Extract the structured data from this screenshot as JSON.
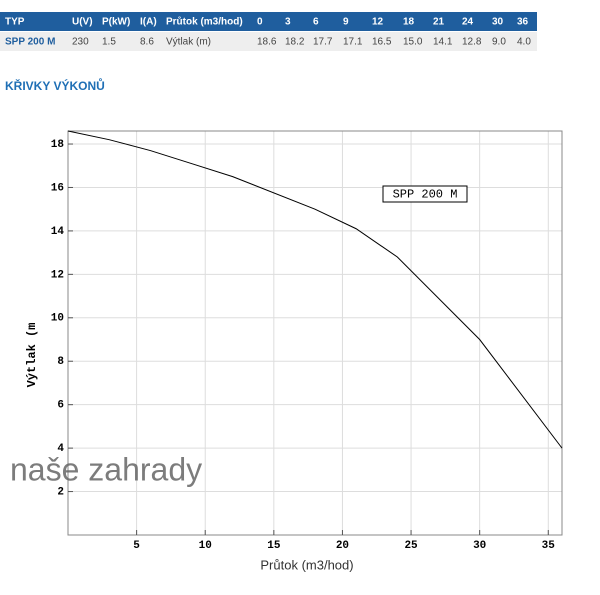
{
  "table": {
    "header": [
      "TYP",
      "U(V)",
      "P(kW)",
      "I(A)",
      "Průtok (m3/hod)",
      "0",
      "3",
      "6",
      "9",
      "12",
      "18",
      "21",
      "24",
      "30",
      "36"
    ],
    "rows": [
      [
        "SPP 200 M",
        "230",
        "1.5",
        "8.6",
        "Výtlak (m)",
        "18.6",
        "18.2",
        "17.7",
        "17.1",
        "16.5",
        "15.0",
        "14.1",
        "12.8",
        "9.0",
        "4.0"
      ]
    ]
  },
  "heading": "KŘIVKY VÝKONŮ",
  "watermark": "naše zahrady",
  "chart_data": {
    "type": "line",
    "x_label": "Průtok (m3/hod)",
    "y_label": "Výtlak (m",
    "x": [
      0,
      3,
      6,
      9,
      12,
      18,
      21,
      24,
      30,
      36
    ],
    "series": [
      {
        "name": "SPP 200 M",
        "color": "#000000",
        "values": [
          18.6,
          18.2,
          17.7,
          17.1,
          16.5,
          15.0,
          14.1,
          12.8,
          9.0,
          4.0
        ]
      }
    ],
    "xlim": [
      0,
      36
    ],
    "ylim": [
      0,
      18.6
    ],
    "xticks": [
      5,
      10,
      15,
      20,
      25,
      30,
      35
    ],
    "yticks": [
      2,
      4,
      6,
      8,
      10,
      12,
      14,
      16,
      18
    ],
    "grid": true
  }
}
